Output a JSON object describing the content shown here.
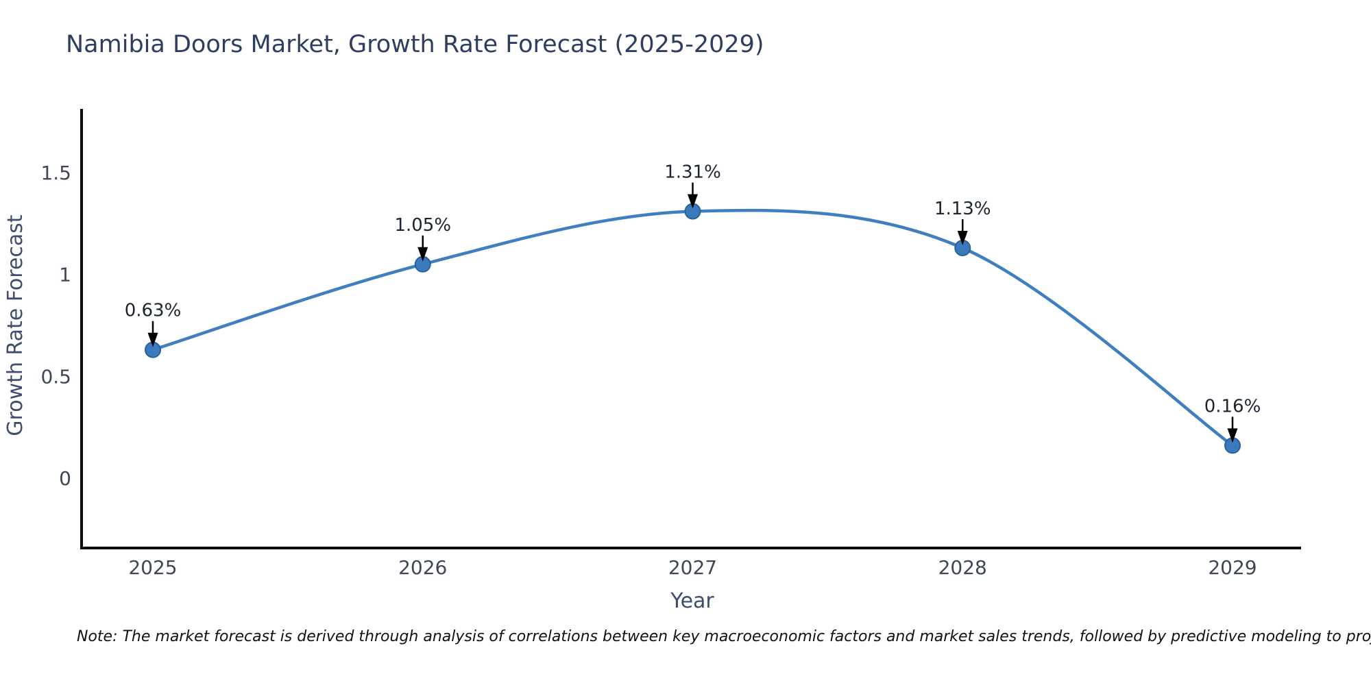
{
  "page": {
    "title": "Namibia Doors Market, Growth Rate Forecast (2025-2029)",
    "note": "Note: The market forecast is derived through analysis of correlations between key macroeconomic factors and market sales trends, followed by predictive modeling to project future sales"
  },
  "colors": {
    "background": "#ffffff",
    "title_text": "#2d3e5f",
    "axis_label_text": "#3d4d6b",
    "tick_label_text": "#3d4758",
    "spine": "#0d0d0d",
    "line": "#3f7fbf",
    "marker_fill": "#3a7abc",
    "marker_edge": "#2b6196",
    "annotation_text": "#1c2430",
    "arrow": "#000000"
  },
  "chart_data": {
    "type": "line",
    "title": "Namibia Doors Market, Growth Rate Forecast (2025-2029)",
    "xlabel": "Year",
    "ylabel": "Growth Rate Forecast",
    "categories": [
      "2025",
      "2026",
      "2027",
      "2028",
      "2029"
    ],
    "values": [
      0.63,
      1.05,
      1.31,
      1.13,
      0.16
    ],
    "data_labels": [
      "0.63%",
      "1.05%",
      "1.31%",
      "1.13%",
      "0.16%"
    ],
    "ytick_values": [
      0,
      0.5,
      1,
      1.5
    ],
    "ytick_labels": [
      "0",
      "0.5",
      "1",
      "1.5"
    ],
    "ylim": [
      -0.35,
      1.8
    ],
    "grid": false,
    "legend": "none",
    "line_shape": "spline",
    "markers": true,
    "annotations": "value labels with downward arrows above each point"
  }
}
